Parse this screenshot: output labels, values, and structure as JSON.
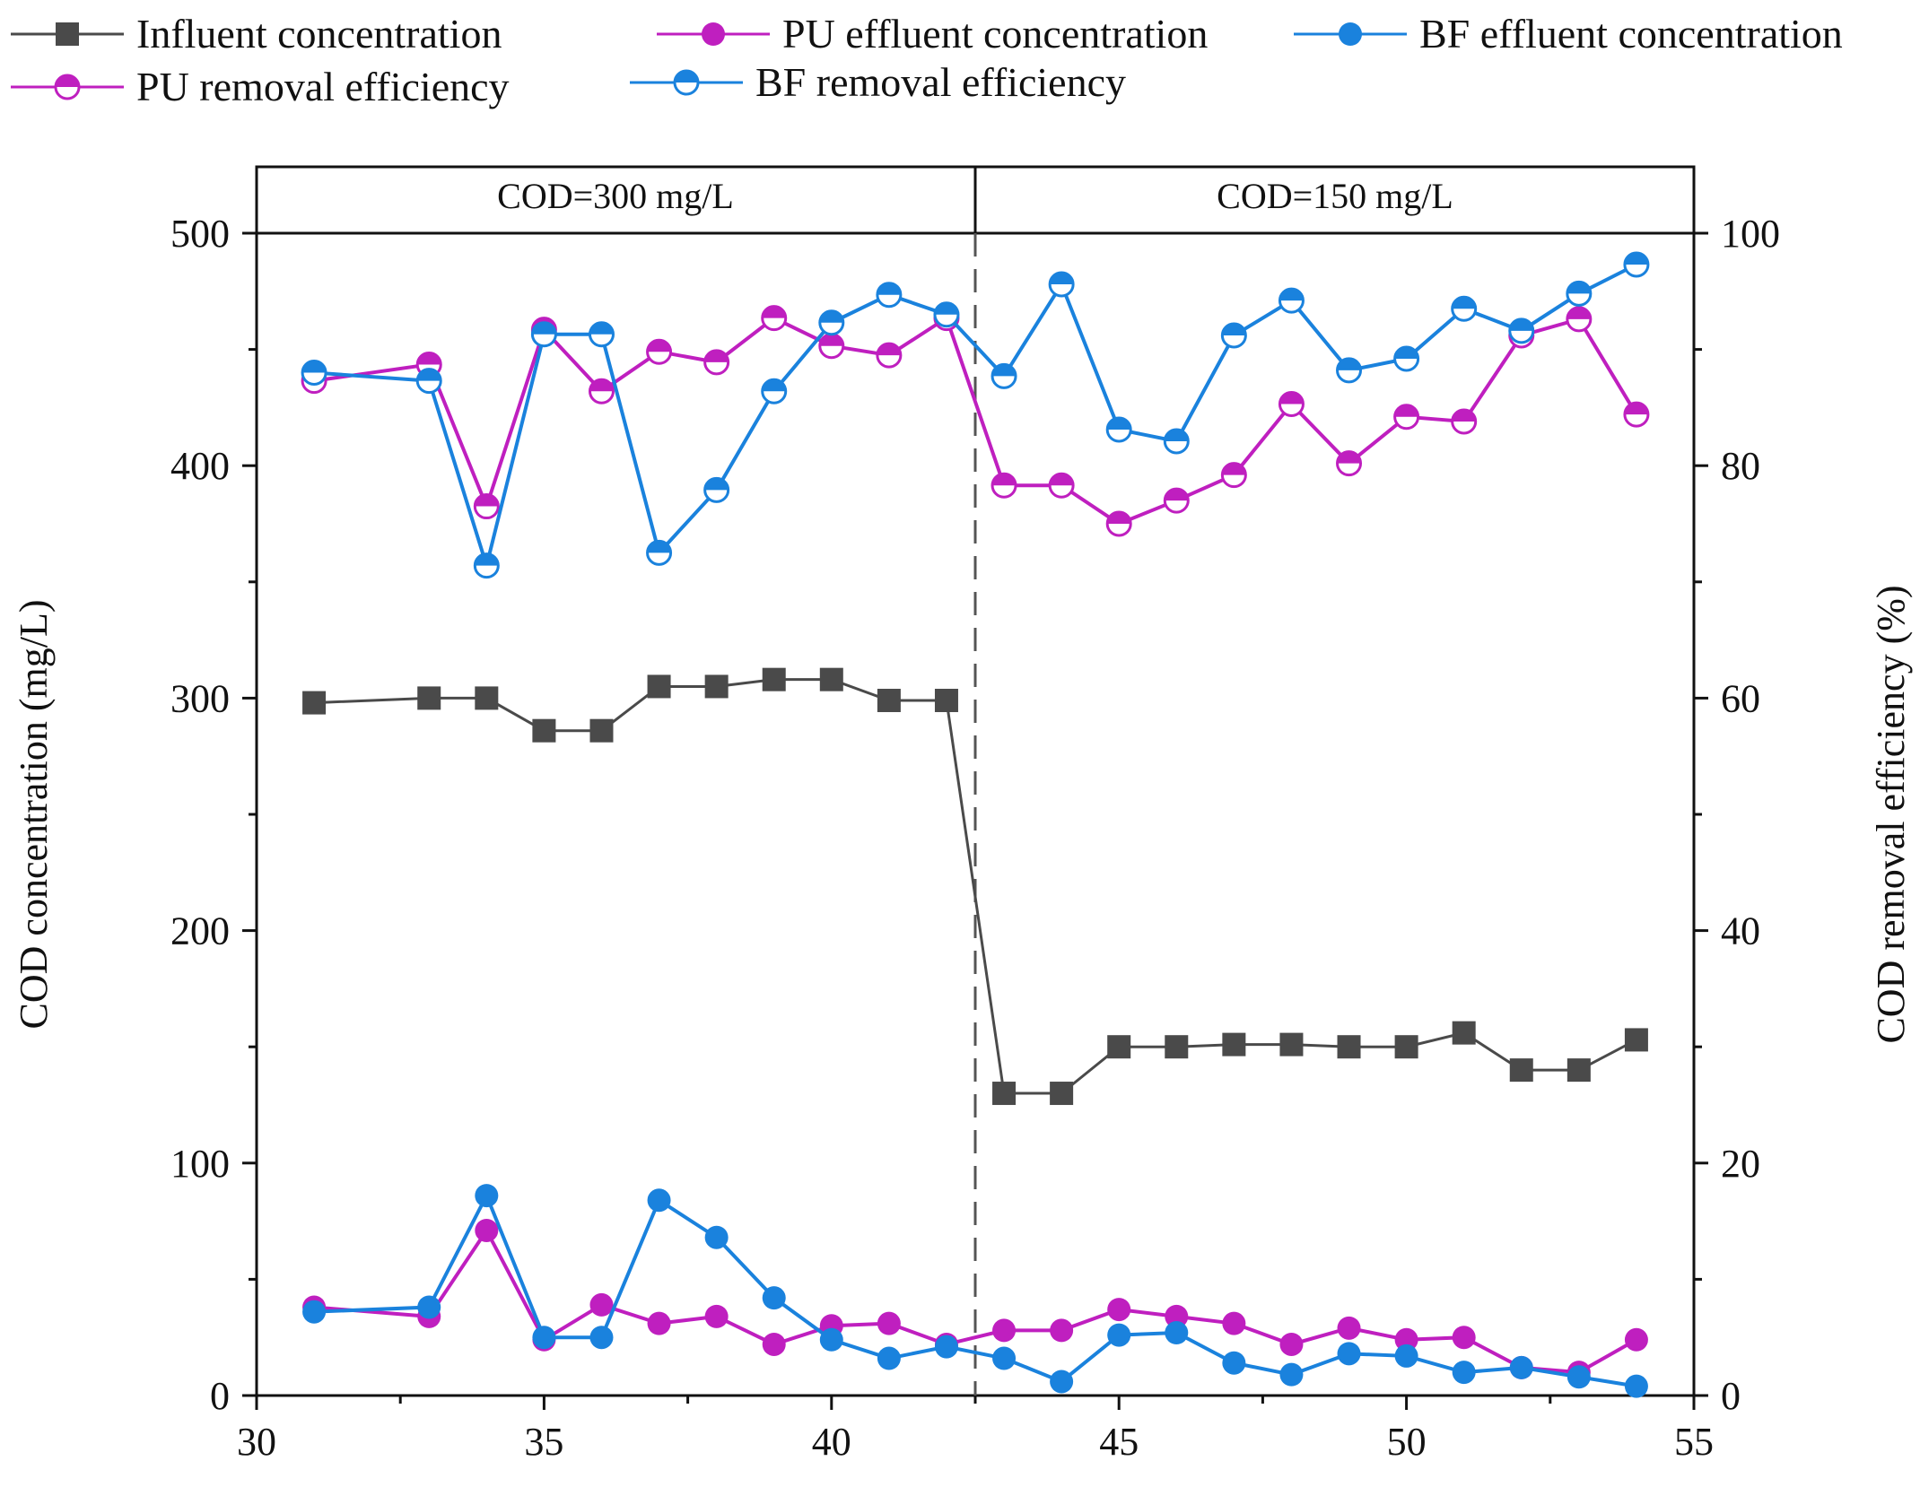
{
  "chart_data": {
    "type": "line",
    "xlim": [
      30,
      55
    ],
    "x_ticks": [
      30,
      35,
      40,
      45,
      50,
      55
    ],
    "x_tick_labels": [
      "30",
      "35",
      "40",
      "45",
      "50",
      "55"
    ],
    "left_axis": {
      "label": "COD concentration (mg/L)",
      "ylim": [
        0,
        500
      ],
      "ticks": [
        0,
        100,
        200,
        300,
        400,
        500
      ],
      "tick_labels": [
        "0",
        "100",
        "200",
        "300",
        "400",
        "500"
      ]
    },
    "right_axis": {
      "label": "COD removal  efficiency (%)",
      "ylim": [
        0,
        100
      ],
      "ticks": [
        0,
        20,
        40,
        60,
        80,
        100
      ],
      "tick_labels": [
        "0",
        "20",
        "40",
        "60",
        "80",
        "100"
      ]
    },
    "phases": [
      {
        "label": "COD=300 mg/L",
        "x_start": 30,
        "x_end": 42.5
      },
      {
        "label": "COD=150 mg/L",
        "x_start": 42.5,
        "x_end": 55
      }
    ],
    "phase_divider_x": 42.5,
    "series": [
      {
        "name": "Influent concentration",
        "axis": "left",
        "color": "#4a4a4a",
        "marker": "square",
        "x": [
          31,
          33,
          34,
          35,
          36,
          37,
          38,
          39,
          40,
          41,
          42,
          43,
          44,
          45,
          46,
          47,
          48,
          49,
          50,
          51,
          52,
          53,
          54
        ],
        "values": [
          298,
          300,
          300,
          286,
          286,
          305,
          305,
          308,
          308,
          299,
          299,
          130,
          130,
          150,
          150,
          151,
          151,
          150,
          150,
          156,
          140,
          140,
          153
        ]
      },
      {
        "name": "PU effluent concentration",
        "axis": "left",
        "color": "#bf1fbf",
        "marker": "circle-filled",
        "x": [
          31,
          33,
          34,
          35,
          36,
          37,
          38,
          39,
          40,
          41,
          42,
          43,
          44,
          45,
          46,
          47,
          48,
          49,
          50,
          51,
          52,
          53,
          54
        ],
        "values": [
          38,
          34,
          71,
          24,
          39,
          31,
          34,
          22,
          30,
          31,
          22,
          28,
          28,
          37,
          34,
          31,
          22,
          29,
          24,
          25,
          12,
          10,
          24
        ]
      },
      {
        "name": "BF effluent concentration",
        "axis": "left",
        "color": "#1a82dd",
        "marker": "circle-filled",
        "x": [
          31,
          33,
          34,
          35,
          36,
          37,
          38,
          39,
          40,
          41,
          42,
          43,
          44,
          45,
          46,
          47,
          48,
          49,
          50,
          51,
          52,
          53,
          54
        ],
        "values": [
          36,
          38,
          86,
          25,
          25,
          84,
          68,
          42,
          24,
          16,
          21,
          16,
          6,
          26,
          27,
          14,
          9,
          18,
          17,
          10,
          12,
          8,
          4
        ]
      },
      {
        "name": "PU removal efficiency",
        "axis": "right",
        "color": "#bf1fbf",
        "marker": "circle-half",
        "x": [
          31,
          33,
          34,
          35,
          36,
          37,
          38,
          39,
          40,
          41,
          42,
          43,
          44,
          45,
          46,
          47,
          48,
          49,
          50,
          51,
          52,
          53,
          54
        ],
        "values": [
          87.3,
          88.7,
          76.5,
          91.7,
          86.4,
          89.8,
          88.9,
          92.7,
          90.3,
          89.5,
          92.7,
          78.3,
          78.3,
          75.0,
          77.0,
          79.2,
          85.3,
          80.2,
          84.2,
          83.8,
          91.2,
          92.6,
          84.4
        ]
      },
      {
        "name": "BF removal efficiency",
        "axis": "right",
        "color": "#1a82dd",
        "marker": "circle-half",
        "x": [
          31,
          33,
          34,
          35,
          36,
          37,
          38,
          39,
          40,
          41,
          42,
          43,
          44,
          45,
          46,
          47,
          48,
          49,
          50,
          51,
          52,
          53,
          54
        ],
        "values": [
          88.0,
          87.3,
          71.4,
          91.3,
          91.3,
          72.5,
          77.9,
          86.4,
          92.3,
          94.7,
          93.0,
          87.7,
          95.6,
          83.1,
          82.1,
          91.2,
          94.2,
          88.2,
          89.2,
          93.5,
          91.6,
          94.8,
          97.3
        ]
      }
    ],
    "legend": {
      "placement": "top",
      "entries": [
        {
          "label": "Influent concentration",
          "series": 0
        },
        {
          "label": "PU effluent concentration",
          "series": 1
        },
        {
          "label": "BF effluent concentration",
          "series": 2
        },
        {
          "label": "PU removal efficiency",
          "series": 3
        },
        {
          "label": "BF removal efficiency",
          "series": 4
        }
      ]
    }
  }
}
